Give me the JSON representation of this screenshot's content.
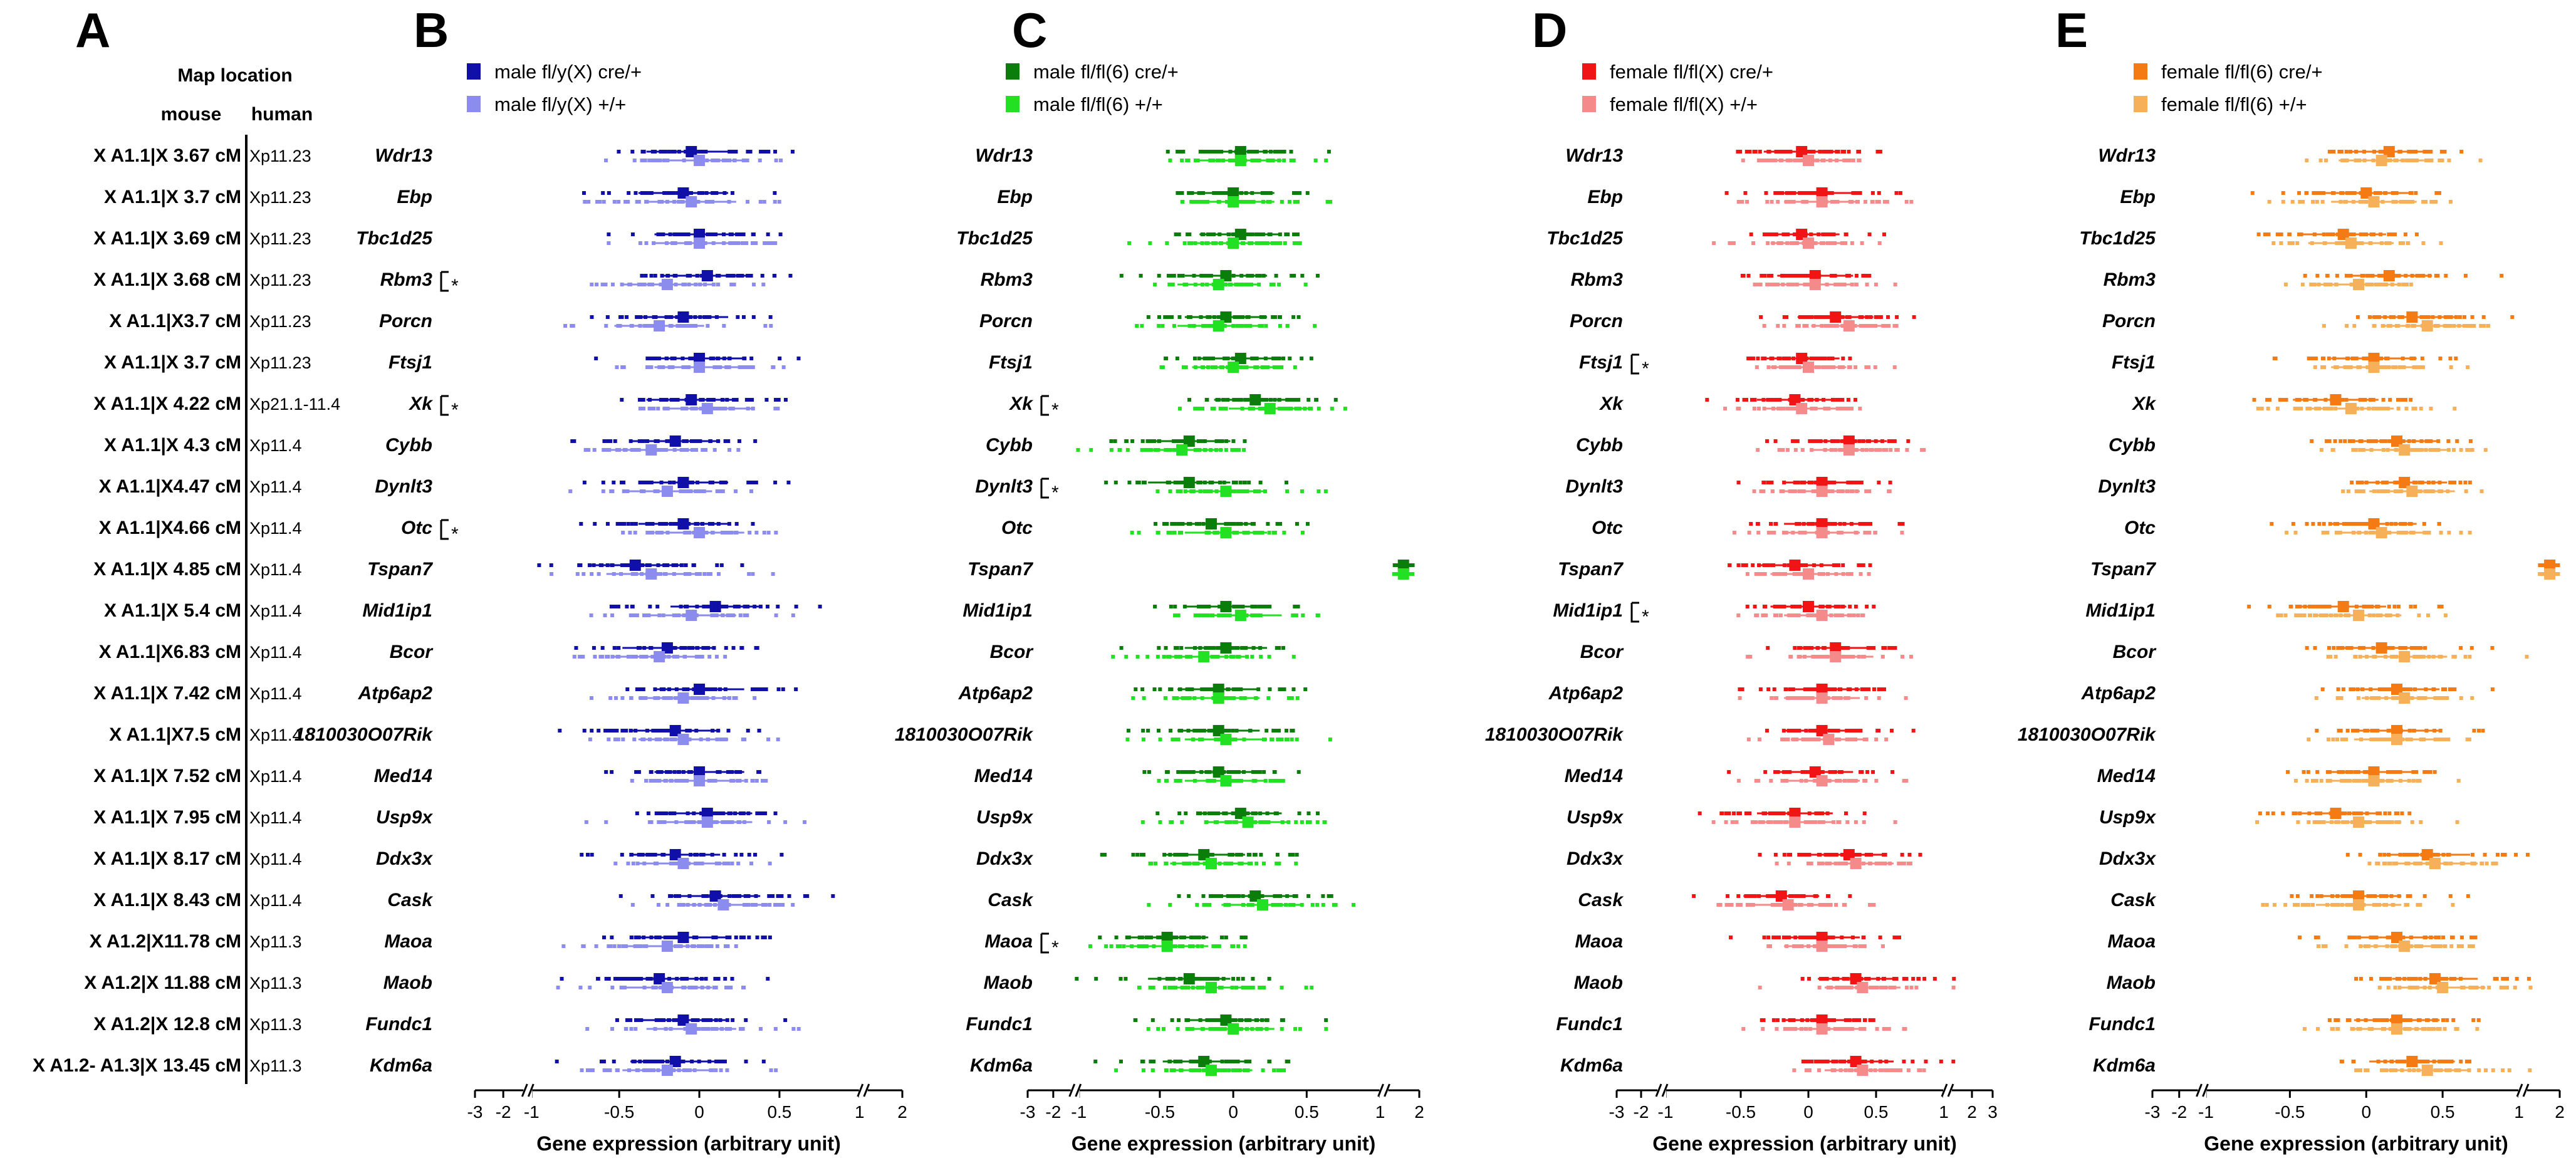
{
  "panel_a": {
    "letter": "A",
    "header": "Map location",
    "subheader_mouse": "mouse",
    "subheader_human": "human",
    "rows": [
      {
        "mouse": "X A1.1|X 3.67 cM",
        "human": "Xp11.23"
      },
      {
        "mouse": "X A1.1|X 3.7 cM",
        "human": "Xp11.23"
      },
      {
        "mouse": "X A1.1|X 3.69 cM",
        "human": "Xp11.23"
      },
      {
        "mouse": "X A1.1|X 3.68 cM",
        "human": "Xp11.23"
      },
      {
        "mouse": "X A1.1|X3.7 cM",
        "human": "Xp11.23"
      },
      {
        "mouse": "X A1.1|X 3.7 cM",
        "human": "Xp11.23"
      },
      {
        "mouse": "X A1.1|X 4.22 cM",
        "human": "Xp21.1-11.4"
      },
      {
        "mouse": "X A1.1|X 4.3 cM",
        "human": "Xp11.4"
      },
      {
        "mouse": "X A1.1|X4.47 cM",
        "human": "Xp11.4"
      },
      {
        "mouse": "X A1.1|X4.66 cM",
        "human": "Xp11.4"
      },
      {
        "mouse": "X A1.1|X 4.85 cM",
        "human": "Xp11.4"
      },
      {
        "mouse": "X A1.1|X 5.4 cM",
        "human": "Xp11.4"
      },
      {
        "mouse": "X A1.1|X6.83 cM",
        "human": "Xp11.4"
      },
      {
        "mouse": "X A1.1|X 7.42 cM",
        "human": "Xp11.4"
      },
      {
        "mouse": "X A1.1|X7.5 cM",
        "human": "Xp11.4"
      },
      {
        "mouse": "X A1.1|X 7.52 cM",
        "human": "Xp11.4"
      },
      {
        "mouse": "X A1.1|X 7.95 cM",
        "human": "Xp11.4"
      },
      {
        "mouse": "X A1.1|X 8.17 cM",
        "human": "Xp11.4"
      },
      {
        "mouse": "X A1.1|X 8.43 cM",
        "human": "Xp11.4"
      },
      {
        "mouse": "X A1.2|X11.78 cM",
        "human": "Xp11.3"
      },
      {
        "mouse": "X A1.2|X 11.88 cM",
        "human": "Xp11.3"
      },
      {
        "mouse": "X A1.2|X 12.8 cM",
        "human": "Xp11.3"
      },
      {
        "mouse": "X A1.2- A1.3|X 13.45 cM",
        "human": "Xp11.3"
      }
    ]
  },
  "colors": {
    "B": [
      "#1010a8",
      "#8c8cee"
    ],
    "C": [
      "#0b7d0b",
      "#22e022"
    ],
    "D": [
      "#f01414",
      "#f58a8a"
    ],
    "E": [
      "#f47a14",
      "#f7b05a"
    ]
  },
  "chart_data": [
    {
      "type": "scatter",
      "panel": "B",
      "title": "",
      "genes": [
        "Wdr13",
        "Ebp",
        "Tbc1d25",
        "Rbm3",
        "Porcn",
        "Ftsj1",
        "Xk",
        "Cybb",
        "Dynlt3",
        "Otc",
        "Tspan7",
        "Mid1ip1",
        "Bcor",
        "Atp6ap2",
        "1810030O07Rik",
        "Med14",
        "Usp9x",
        "Ddx3x",
        "Cask",
        "Maoa",
        "Maob",
        "Fundc1",
        "Kdm6a"
      ],
      "series": [
        {
          "name": "male fl/y(X) cre/+",
          "mean": [
            -0.05,
            -0.1,
            0.0,
            0.05,
            -0.1,
            0.0,
            -0.05,
            -0.15,
            -0.1,
            -0.1,
            -0.4,
            0.1,
            -0.2,
            0.0,
            -0.15,
            0.0,
            0.05,
            -0.15,
            0.1,
            -0.1,
            -0.25,
            -0.1,
            -0.15
          ]
        },
        {
          "name": "male fl/y(X) +/+",
          "mean": [
            0.0,
            -0.05,
            0.0,
            -0.2,
            -0.25,
            0.0,
            0.05,
            -0.3,
            -0.2,
            0.0,
            -0.3,
            -0.05,
            -0.25,
            -0.1,
            -0.1,
            0.0,
            0.05,
            -0.1,
            0.15,
            -0.2,
            -0.2,
            -0.05,
            -0.2
          ]
        }
      ],
      "significant": [
        "Rbm3",
        "Xk",
        "Otc"
      ],
      "xlabel": "Gene expression (arbitrary unit)",
      "xticks": [
        "-3",
        "-2",
        "-1",
        "-0.5",
        "0",
        "0.5",
        "1",
        "2"
      ],
      "xlim": [
        -3,
        2
      ]
    },
    {
      "type": "scatter",
      "panel": "C",
      "title": "",
      "genes": [
        "Wdr13",
        "Ebp",
        "Tbc1d25",
        "Rbm3",
        "Porcn",
        "Ftsj1",
        "Xk",
        "Cybb",
        "Dynlt3",
        "Otc",
        "Tspan7",
        "Mid1ip1",
        "Bcor",
        "Atp6ap2",
        "1810030O07Rik",
        "Med14",
        "Usp9x",
        "Ddx3x",
        "Cask",
        "Maoa",
        "Maob",
        "Fundc1",
        "Kdm6a"
      ],
      "series": [
        {
          "name": "male fl/fl(6) cre/+",
          "mean": [
            0.05,
            0.0,
            0.05,
            -0.05,
            -0.05,
            0.05,
            0.15,
            -0.3,
            -0.3,
            -0.15,
            1.5,
            -0.05,
            -0.05,
            -0.1,
            -0.1,
            -0.1,
            0.05,
            -0.2,
            0.15,
            -0.45,
            -0.3,
            -0.05,
            -0.2
          ]
        },
        {
          "name": "male fl/fl(6) +/+",
          "mean": [
            0.05,
            0.0,
            0.0,
            -0.1,
            -0.1,
            0.0,
            0.25,
            -0.35,
            -0.05,
            -0.05,
            1.5,
            0.05,
            -0.2,
            -0.1,
            -0.05,
            -0.05,
            0.1,
            -0.15,
            0.2,
            -0.45,
            -0.15,
            0.0,
            -0.15
          ]
        }
      ],
      "significant": [
        "Xk",
        "Dynlt3",
        "Maoa"
      ],
      "xlabel": "Gene expression (arbitrary unit)",
      "xticks": [
        "-3",
        "-2",
        "-1",
        "-0.5",
        "0",
        "0.5",
        "1",
        "2"
      ],
      "xlim": [
        -3,
        2
      ]
    },
    {
      "type": "scatter",
      "panel": "D",
      "title": "",
      "genes": [
        "Wdr13",
        "Ebp",
        "Tbc1d25",
        "Rbm3",
        "Porcn",
        "Ftsj1",
        "Xk",
        "Cybb",
        "Dynlt3",
        "Otc",
        "Tspan7",
        "Mid1ip1",
        "Bcor",
        "Atp6ap2",
        "1810030O07Rik",
        "Med14",
        "Usp9x",
        "Ddx3x",
        "Cask",
        "Maoa",
        "Maob",
        "Fundc1",
        "Kdm6a"
      ],
      "series": [
        {
          "name": "female fl/fl(X) cre/+",
          "mean": [
            -0.05,
            0.1,
            -0.05,
            0.05,
            0.2,
            -0.05,
            -0.1,
            0.3,
            0.1,
            0.1,
            -0.1,
            0.0,
            0.2,
            0.1,
            0.1,
            0.05,
            -0.1,
            0.3,
            -0.2,
            0.1,
            0.35,
            0.1,
            0.35
          ]
        },
        {
          "name": "female fl/fl(X) +/+",
          "mean": [
            0.0,
            0.1,
            0.0,
            0.05,
            0.3,
            0.0,
            -0.05,
            0.3,
            0.1,
            0.1,
            0.0,
            0.1,
            0.2,
            0.1,
            0.15,
            0.1,
            -0.1,
            0.35,
            -0.15,
            0.1,
            0.4,
            0.1,
            0.4
          ]
        }
      ],
      "significant": [
        "Ftsj1",
        "Mid1ip1"
      ],
      "xlabel": "Gene expression (arbitrary unit)",
      "xticks": [
        "-3",
        "-2",
        "-1",
        "-0.5",
        "0",
        "0.5",
        "1",
        "2",
        "3"
      ],
      "xlim": [
        -3,
        3
      ]
    },
    {
      "type": "scatter",
      "panel": "E",
      "title": "",
      "genes": [
        "Wdr13",
        "Ebp",
        "Tbc1d25",
        "Rbm3",
        "Porcn",
        "Ftsj1",
        "Xk",
        "Cybb",
        "Dynlt3",
        "Otc",
        "Tspan7",
        "Mid1ip1",
        "Bcor",
        "Atp6ap2",
        "1810030O07Rik",
        "Med14",
        "Usp9x",
        "Ddx3x",
        "Cask",
        "Maoa",
        "Maob",
        "Fundc1",
        "Kdm6a"
      ],
      "series": [
        {
          "name": "female fl/fl(6) cre/+",
          "mean": [
            0.15,
            0.0,
            -0.15,
            0.15,
            0.3,
            0.05,
            -0.2,
            0.2,
            0.25,
            0.05,
            1.7,
            -0.15,
            0.1,
            0.2,
            0.2,
            0.05,
            -0.2,
            0.4,
            -0.05,
            0.2,
            0.45,
            0.2,
            0.3
          ]
        },
        {
          "name": "female fl/fl(6) +/+",
          "mean": [
            0.1,
            0.05,
            -0.1,
            -0.05,
            0.4,
            0.05,
            -0.1,
            0.25,
            0.3,
            0.1,
            1.7,
            -0.05,
            0.25,
            0.25,
            0.2,
            0.05,
            -0.05,
            0.45,
            -0.05,
            0.25,
            0.5,
            0.2,
            0.4
          ]
        }
      ],
      "significant": [],
      "xlabel": "Gene expression (arbitrary unit)",
      "xticks": [
        "-3",
        "-2",
        "-1",
        "-0.5",
        "0",
        "0.5",
        "1",
        "2"
      ],
      "xlim": [
        -3,
        2
      ]
    }
  ]
}
